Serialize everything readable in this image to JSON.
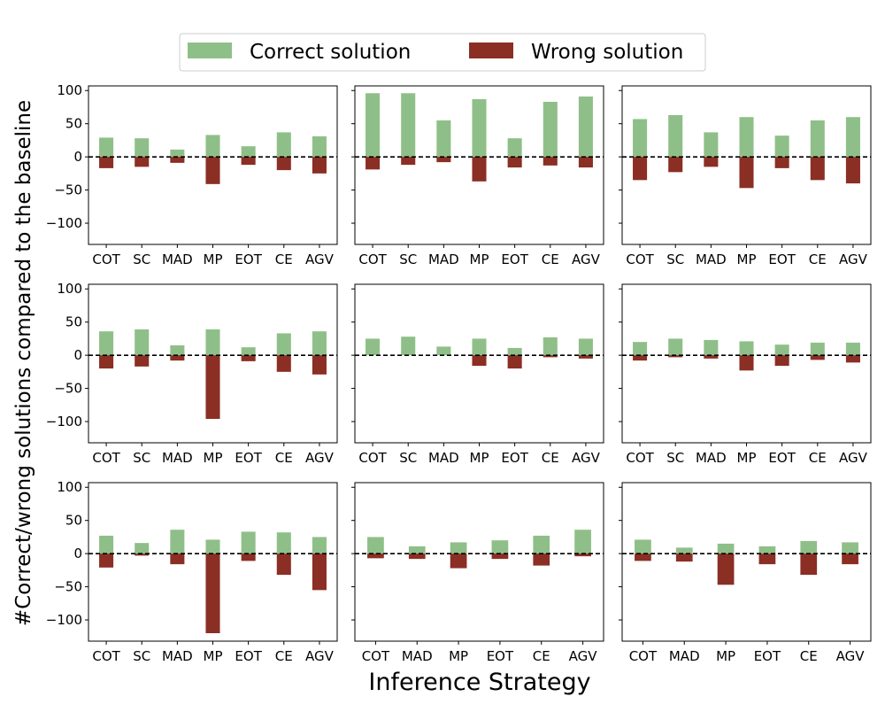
{
  "chart_data": {
    "type": "bar",
    "layout": "3x3 grid of subplots, shared y axis",
    "xlabel": "Inference Strategy",
    "ylabel": "#Correct/wrong solutions compared to the baseline",
    "ylim": [
      -132,
      107
    ],
    "yticks": [
      100,
      50,
      0,
      -50,
      -100
    ],
    "ytick_labels": [
      "100",
      "50",
      "0",
      "−50",
      "−100"
    ],
    "legend": {
      "placement": "top-center",
      "entries": [
        "Correct solution",
        "Wrong solution"
      ]
    },
    "colors": {
      "correct": "#8fbf88",
      "wrong": "#8b2e24",
      "baseline": "#000000"
    },
    "baseline_style": "dashed line at y=0",
    "panels": [
      {
        "categories": [
          "COT",
          "SC",
          "MAD",
          "MP",
          "EOT",
          "CE",
          "AGV"
        ],
        "series": [
          {
            "name": "Correct solution",
            "values": [
              29,
              28,
              11,
              33,
              16,
              37,
              31
            ]
          },
          {
            "name": "Wrong solution",
            "values": [
              -17,
              -15,
              -9,
              -41,
              -12,
              -20,
              -25
            ]
          }
        ]
      },
      {
        "categories": [
          "COT",
          "SC",
          "MAD",
          "MP",
          "EOT",
          "CE",
          "AGV"
        ],
        "series": [
          {
            "name": "Correct solution",
            "values": [
              96,
              96,
              55,
              87,
              28,
              83,
              91
            ]
          },
          {
            "name": "Wrong solution",
            "values": [
              -19,
              -12,
              -8,
              -37,
              -16,
              -13,
              -16
            ]
          }
        ]
      },
      {
        "categories": [
          "COT",
          "SC",
          "MAD",
          "MP",
          "EOT",
          "CE",
          "AGV"
        ],
        "series": [
          {
            "name": "Correct solution",
            "values": [
              57,
              63,
              37,
              60,
              32,
              55,
              60
            ]
          },
          {
            "name": "Wrong solution",
            "values": [
              -35,
              -23,
              -15,
              -47,
              -17,
              -35,
              -40
            ]
          }
        ]
      },
      {
        "categories": [
          "COT",
          "SC",
          "MAD",
          "MP",
          "EOT",
          "CE",
          "AGV"
        ],
        "series": [
          {
            "name": "Correct solution",
            "values": [
              36,
              39,
              15,
              39,
              12,
              33,
              36
            ]
          },
          {
            "name": "Wrong solution",
            "values": [
              -20,
              -17,
              -8,
              -96,
              -9,
              -25,
              -29
            ]
          }
        ]
      },
      {
        "categories": [
          "COT",
          "SC",
          "MAD",
          "MP",
          "EOT",
          "CE",
          "AGV"
        ],
        "series": [
          {
            "name": "Correct solution",
            "values": [
              25,
              28,
              13,
              25,
              11,
              27,
              25
            ]
          },
          {
            "name": "Wrong solution",
            "values": [
              0,
              0,
              0,
              -16,
              -20,
              -3,
              -5
            ]
          }
        ]
      },
      {
        "categories": [
          "COT",
          "SC",
          "MAD",
          "MP",
          "EOT",
          "CE",
          "AGV"
        ],
        "series": [
          {
            "name": "Correct solution",
            "values": [
              20,
              25,
              23,
              21,
              16,
              19,
              19
            ]
          },
          {
            "name": "Wrong solution",
            "values": [
              -8,
              -3,
              -5,
              -23,
              -16,
              -7,
              -11
            ]
          }
        ]
      },
      {
        "categories": [
          "COT",
          "SC",
          "MAD",
          "MP",
          "EOT",
          "CE",
          "AGV"
        ],
        "series": [
          {
            "name": "Correct solution",
            "values": [
              27,
              16,
              36,
              21,
              33,
              32,
              25
            ]
          },
          {
            "name": "Wrong solution",
            "values": [
              -21,
              -3,
              -16,
              -120,
              -11,
              -32,
              -55
            ]
          }
        ]
      },
      {
        "categories": [
          "COT",
          "MAD",
          "MP",
          "EOT",
          "CE",
          "AGV"
        ],
        "series": [
          {
            "name": "Correct solution",
            "values": [
              25,
              11,
              17,
              20,
              27,
              36
            ]
          },
          {
            "name": "Wrong solution",
            "values": [
              -7,
              -8,
              -22,
              -8,
              -18,
              -4
            ]
          }
        ]
      },
      {
        "categories": [
          "COT",
          "MAD",
          "MP",
          "EOT",
          "CE",
          "AGV"
        ],
        "series": [
          {
            "name": "Correct solution",
            "values": [
              21,
              9,
              15,
              11,
              19,
              17
            ]
          },
          {
            "name": "Wrong solution",
            "values": [
              -11,
              -12,
              -47,
              -16,
              -32,
              -16
            ]
          }
        ]
      }
    ]
  }
}
